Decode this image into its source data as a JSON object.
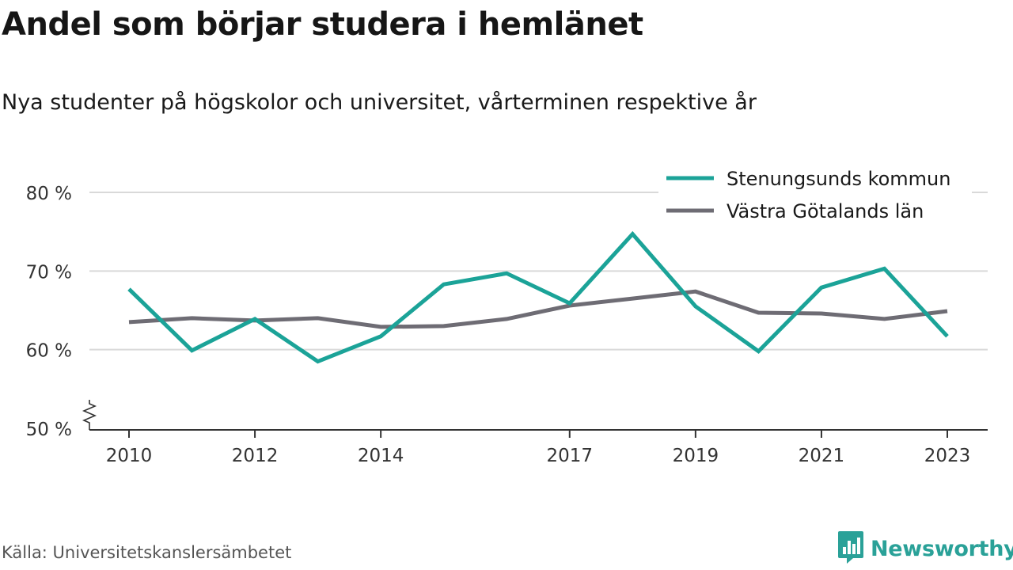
{
  "header": {
    "title": "Andel som börjar studera i hemlänet",
    "subtitle": "Nya studenter på högskolor och universitet, vårterminen respektive år"
  },
  "footer": {
    "source": "Källa: Universitetskanslersämbetet",
    "brand": "Newsworthy",
    "brand_icon": "newsworthy-logo-icon",
    "brand_color": "#2aa198"
  },
  "chart_data": {
    "type": "line",
    "title": "Andel som börjar studera i hemlänet",
    "subtitle": "Nya studenter på högskolor och universitet, vårterminen respektive år",
    "x": [
      2010,
      2011,
      2012,
      2013,
      2014,
      2015,
      2016,
      2017,
      2018,
      2019,
      2020,
      2021,
      2022,
      2023
    ],
    "x_tick_labels": [
      "2010",
      "2012",
      "2014",
      "2017",
      "2019",
      "2021",
      "2023"
    ],
    "y_ticks": [
      50,
      60,
      70,
      80
    ],
    "y_tick_labels": [
      "50 %",
      "60 %",
      "70 %",
      "80 %"
    ],
    "ylim": [
      50,
      80
    ],
    "y_axis_break": true,
    "grid": true,
    "legend_position": "top-right",
    "series": [
      {
        "name": "Stenungsunds kommun",
        "color": "#1ba398",
        "values": [
          67.7,
          59.9,
          63.9,
          58.5,
          61.7,
          68.3,
          69.7,
          65.9,
          74.7,
          65.5,
          59.8,
          67.9,
          70.3,
          61.7
        ]
      },
      {
        "name": "Västra Götalands län",
        "color": "#6e6c74",
        "values": [
          63.5,
          64.0,
          63.7,
          64.0,
          62.9,
          63.0,
          63.9,
          65.6,
          66.5,
          67.4,
          64.7,
          64.6,
          63.9,
          64.9
        ]
      }
    ]
  }
}
